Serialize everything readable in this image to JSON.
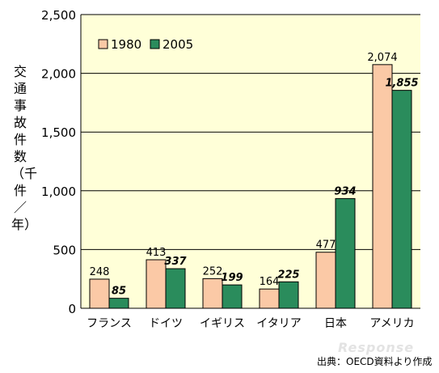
{
  "chart_data": {
    "type": "bar",
    "categories": [
      "フランス",
      "ドイツ",
      "イギリス",
      "イタリア",
      "日本",
      "アメリカ"
    ],
    "series": [
      {
        "name": "1980",
        "values": [
          248,
          413,
          252,
          164,
          477,
          2074
        ],
        "labels": [
          "248",
          "413",
          "252",
          "164",
          "477",
          "2,074"
        ],
        "color": "#fbc9a6"
      },
      {
        "name": "2005",
        "values": [
          85,
          337,
          199,
          225,
          934,
          1855
        ],
        "labels": [
          "85",
          "337",
          "199",
          "225",
          "934",
          "1,855"
        ],
        "color": "#2a8c5c"
      }
    ],
    "ylabel": "交通事故件数（千件／年）",
    "ylim": [
      0,
      2500
    ],
    "yticks": [
      "0",
      "500",
      "1,000",
      "1,500",
      "2,000",
      "2,500"
    ],
    "grid": true,
    "plot_background": "#ffffd8",
    "legend_position": "top-left"
  },
  "source_note": "出典：OECD資料より作成",
  "watermark_text": "Response"
}
